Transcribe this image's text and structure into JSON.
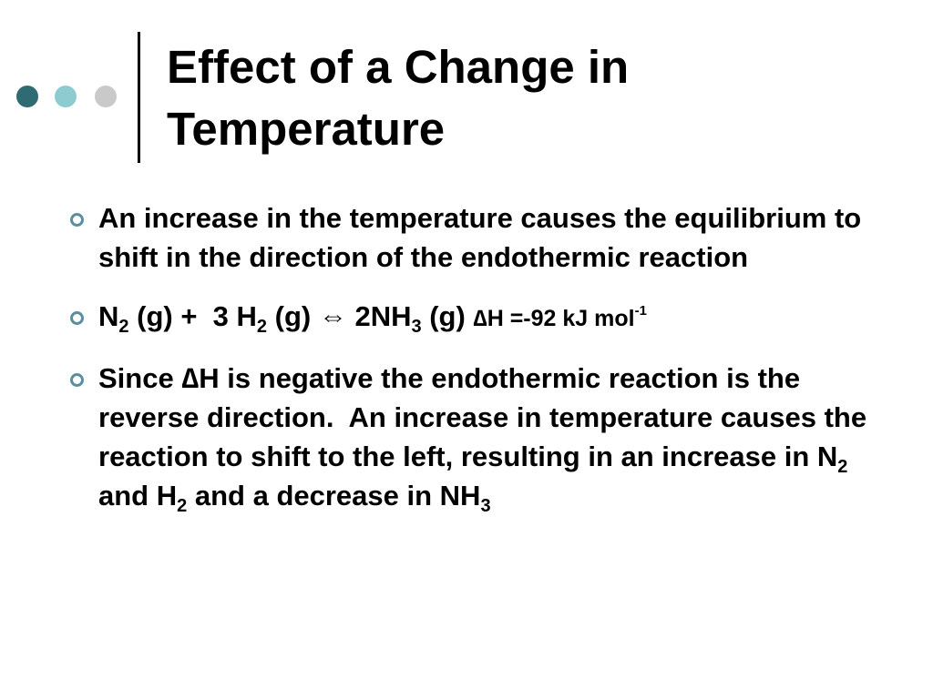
{
  "slide": {
    "title": "Effect of a Change in Temperature",
    "bullets": [
      {
        "runs": [
          {
            "text": "An increase in the temperature causes the equilibrium to shift in the direction of the endothermic reaction",
            "style": "plain"
          }
        ]
      },
      {
        "runs": [
          {
            "text": "N",
            "style": "plain"
          },
          {
            "text": "2",
            "style": "sub"
          },
          {
            "text": " (g) +  3 H",
            "style": "plain"
          },
          {
            "text": "2",
            "style": "sub"
          },
          {
            "text": " (g) ⇔ 2NH",
            "style": "plain"
          },
          {
            "text": "3",
            "style": "sub"
          },
          {
            "text": " (g) ",
            "style": "plain"
          },
          {
            "text": "∆H =-92 kJ mol",
            "style": "small"
          },
          {
            "text": "-1",
            "style": "sup"
          }
        ]
      },
      {
        "runs": [
          {
            "text": "Since ∆H is negative the endothermic reaction is the reverse direction.  An increase in temperature causes the reaction to shift to the left, resulting in an increase in N",
            "style": "plain"
          },
          {
            "text": "2",
            "style": "sub"
          },
          {
            "text": " and H",
            "style": "plain"
          },
          {
            "text": "2",
            "style": "sub"
          },
          {
            "text": " and a decrease in NH",
            "style": "plain"
          },
          {
            "text": "3",
            "style": "sub"
          }
        ]
      }
    ]
  }
}
